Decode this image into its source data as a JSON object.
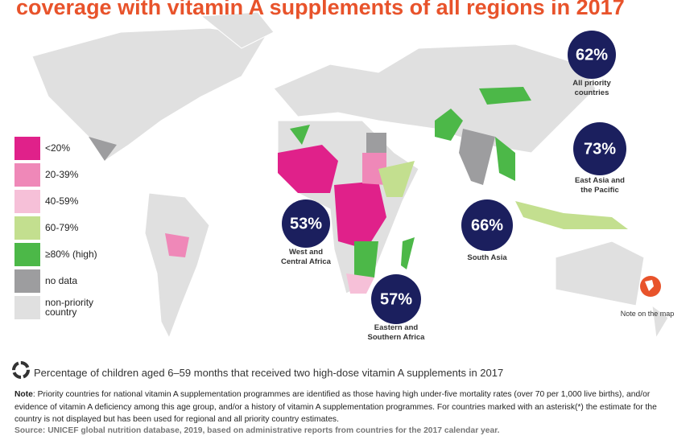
{
  "title": "coverage with vitamin A supplements of all regions in 2017",
  "legend": [
    {
      "label": "<20%",
      "color": "#e0218a"
    },
    {
      "label": "20-39%",
      "color": "#ef88b8"
    },
    {
      "label": "40-59%",
      "color": "#f6c0d8"
    },
    {
      "label": "60-79%",
      "color": "#c3df8f"
    },
    {
      "label": "≥80% (high)",
      "color": "#4cb848"
    },
    {
      "label": "no data",
      "color": "#9d9d9f"
    },
    {
      "label": "non-priority country",
      "color": "#e0e0e0"
    }
  ],
  "regions": [
    {
      "value": "62%",
      "label": [
        "All priority",
        "countries"
      ]
    },
    {
      "value": "73%",
      "label": [
        "East Asia and",
        "the Pacific"
      ]
    },
    {
      "value": "53%",
      "label": [
        "West and",
        "Central Africa"
      ]
    },
    {
      "value": "66%",
      "label": [
        "South Asia"
      ]
    },
    {
      "value": "57%",
      "label": [
        "Eastern and",
        "Southern Africa"
      ]
    }
  ],
  "map_note": "Note on the map",
  "caption": "Percentage of children aged 6–59 months that received two high-dose vitamin A supplements in 2017",
  "note": {
    "label": "Note",
    "text": ": Priority countries for national vitamin A supplementation programmes are identified as those having high under-five mortality rates (over 70 per 1,000 live births), and/or evidence of vitamin A deficiency among this age group, and/or a history of vitamin A supplementation programmes. For countries marked with an asterisk(*) the estimate for the country is not displayed but has been used for regional and all priority country estimates."
  },
  "source": "Source: UNICEF global nutrition database, 2019, based on administrative reports from countries for the 2017 calendar year."
}
